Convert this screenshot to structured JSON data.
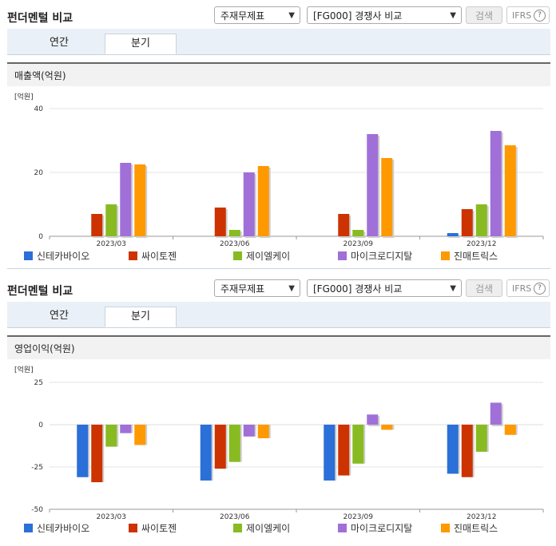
{
  "colors": [
    "#2b6fd8",
    "#cc3300",
    "#88bb22",
    "#a070d8",
    "#ff9900"
  ],
  "sections": [
    {
      "title": "펀더멘털 비교",
      "select1": "주재무제표",
      "select2": "[FG000] 경쟁사 비교",
      "search_label": "검색",
      "ifrs_label": "IFRS",
      "help_label": "?",
      "tabs": [
        "연간",
        "분기"
      ],
      "active_tab": 1,
      "panel_title": "매출액(억원)"
    },
    {
      "title": "펀더멘털 비교",
      "select1": "주재무제표",
      "select2": "[FG000] 경쟁사 비교",
      "search_label": "검색",
      "ifrs_label": "IFRS",
      "help_label": "?",
      "tabs": [
        "연간",
        "분기"
      ],
      "active_tab": 1,
      "panel_title": "영업이익(억원)"
    }
  ],
  "chart_data": [
    {
      "type": "bar",
      "unit_label": "[억원]",
      "categories": [
        "2023/03",
        "2023/06",
        "2023/09",
        "2023/12"
      ],
      "ylim": [
        0,
        40
      ],
      "yticks": [
        "0",
        "20",
        "40"
      ],
      "series": [
        {
          "name": "신테카바이오",
          "values": [
            0,
            0,
            0,
            1
          ]
        },
        {
          "name": "싸이토젠",
          "values": [
            7,
            9,
            7,
            8.5
          ]
        },
        {
          "name": "제이엘케이",
          "values": [
            10,
            2,
            2,
            10
          ]
        },
        {
          "name": "마이크로디지탈",
          "values": [
            23,
            20,
            32,
            33
          ]
        },
        {
          "name": "진매트릭스",
          "values": [
            22.5,
            22,
            24.5,
            28.5
          ]
        }
      ]
    },
    {
      "type": "bar",
      "unit_label": "[억원]",
      "categories": [
        "2023/03",
        "2023/06",
        "2023/09",
        "2023/12"
      ],
      "ylim": [
        -50,
        25
      ],
      "yticks": [
        "25",
        "0",
        "-25",
        "-50"
      ],
      "series": [
        {
          "name": "신테카바이오",
          "values": [
            -31,
            -33,
            -33,
            -29
          ]
        },
        {
          "name": "싸이토젠",
          "values": [
            -34,
            -26,
            -30,
            -31
          ]
        },
        {
          "name": "제이엘케이",
          "values": [
            -13,
            -22,
            -23,
            -16
          ]
        },
        {
          "name": "마이크로디지탈",
          "values": [
            -5,
            -7,
            6,
            13
          ]
        },
        {
          "name": "진매트릭스",
          "values": [
            -12,
            -8,
            -3,
            -6
          ]
        }
      ]
    }
  ]
}
